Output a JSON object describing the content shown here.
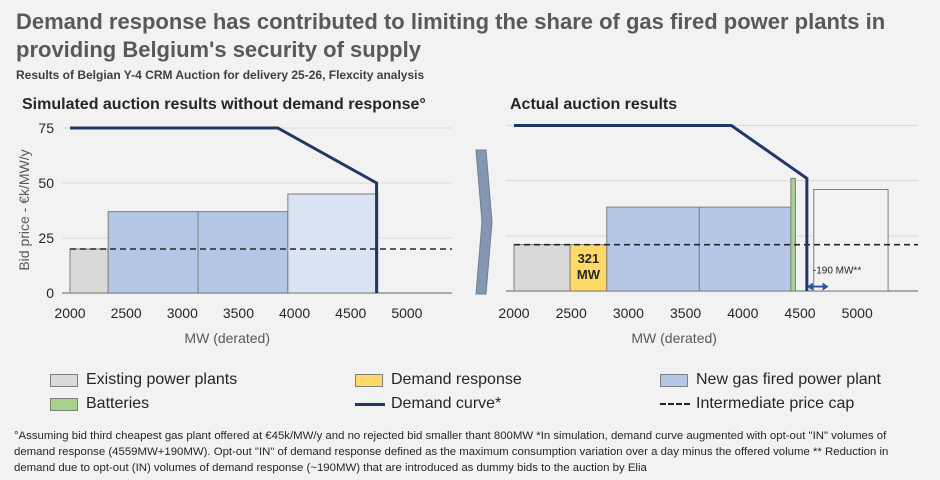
{
  "header": {
    "title": "Demand response has contributed to limiting the share of gas fired power plants in providing Belgium's security of supply",
    "subtitle": "Results of Belgian Y-4 CRM Auction for delivery 25-26, Flexcity analysis"
  },
  "colors": {
    "existing": "#d9d9d9",
    "new_gas": "#b4c7e7",
    "new_gas_light": "#dae3f3",
    "demand_response": "#ffd966",
    "batteries": "#a9d18e",
    "demand_curve": "#1f3864",
    "price_cap": "#262626"
  },
  "chart_data": [
    {
      "type": "bar",
      "title": "Simulated auction results without demand response°",
      "xlabel": "MW (derated)",
      "ylabel": "Bid price - €k/MW/y",
      "xlim": [
        2000,
        5500
      ],
      "ylim": [
        0,
        75
      ],
      "xticks": [
        "2000",
        "2500",
        "3000",
        "3500",
        "4000",
        "4500",
        "5000"
      ],
      "yticks": [
        "0",
        "25",
        "50",
        "75"
      ],
      "blocks": [
        {
          "series": "Existing power plants",
          "x0": 2000,
          "x1": 2340,
          "price": 20
        },
        {
          "series": "New gas fired power plant",
          "x0": 2340,
          "x1": 3140,
          "price": 37
        },
        {
          "series": "New gas fired power plant",
          "x0": 3140,
          "x1": 3940,
          "price": 37
        },
        {
          "series": "New gas fired power plant",
          "x0": 3940,
          "x1": 4740,
          "price": 45
        }
      ],
      "demand_curve": [
        [
          2000,
          75
        ],
        [
          3850,
          75
        ],
        [
          4730,
          50
        ],
        [
          4730,
          0
        ]
      ],
      "price_cap": 20
    },
    {
      "type": "bar",
      "title": "Actual auction results",
      "xlabel": "MW (derated)",
      "ylabel": "",
      "xlim": [
        2000,
        5500
      ],
      "ylim": [
        0,
        75
      ],
      "xticks": [
        "2000",
        "2500",
        "3000",
        "3500",
        "4000",
        "4500",
        "5000"
      ],
      "blocks": [
        {
          "series": "Existing power plants",
          "x0": 2000,
          "x1": 2490,
          "price": 21
        },
        {
          "series": "Demand response",
          "x0": 2490,
          "x1": 2811,
          "price": 21,
          "label": "321\nMW"
        },
        {
          "series": "New gas fired power plant",
          "x0": 2811,
          "x1": 3620,
          "price": 38
        },
        {
          "series": "New gas fired power plant",
          "x0": 3620,
          "x1": 4420,
          "price": 38
        },
        {
          "series": "Batteries",
          "x0": 4420,
          "x1": 4460,
          "price": 51
        },
        {
          "series": "Existing power plants",
          "x0": 4620,
          "x1": 5270,
          "price": 46
        }
      ],
      "demand_curve": [
        [
          2000,
          75
        ],
        [
          3900,
          75
        ],
        [
          4560,
          51
        ],
        [
          4560,
          0
        ]
      ],
      "price_cap": 21,
      "annotation": {
        "text": "-190 MW**",
        "x0": 4560,
        "x1": 4750,
        "y": 2
      }
    }
  ],
  "legend": {
    "items": [
      {
        "label": "Existing power plants",
        "kind": "box",
        "color": "#d9d9d9"
      },
      {
        "label": "Demand response",
        "kind": "box",
        "color": "#ffd966"
      },
      {
        "label": "New gas fired power plant",
        "kind": "box",
        "color": "#b4c7e7"
      },
      {
        "label": "Batteries",
        "kind": "box",
        "color": "#a9d18e"
      },
      {
        "label": "Demand curve*",
        "kind": "line",
        "color": "#1f3864"
      },
      {
        "label": "Intermediate price cap",
        "kind": "dash",
        "color": "#262626"
      }
    ]
  },
  "footnote": "°Assuming bid third cheapest gas plant offered at €45k/MW/y and no rejected bid smaller thant 800MW *In simulation, demand curve augmented with opt-out \"IN\" volumes of demand response (4559MW+190MW). Opt-out \"IN\" of demand response defined as the maximum consumption variation over a day minus the offered volume ** Reduction in demand due to opt-out (IN) volumes of demand response (~190MW) that are introduced as dummy bids to the auction by Elia"
}
